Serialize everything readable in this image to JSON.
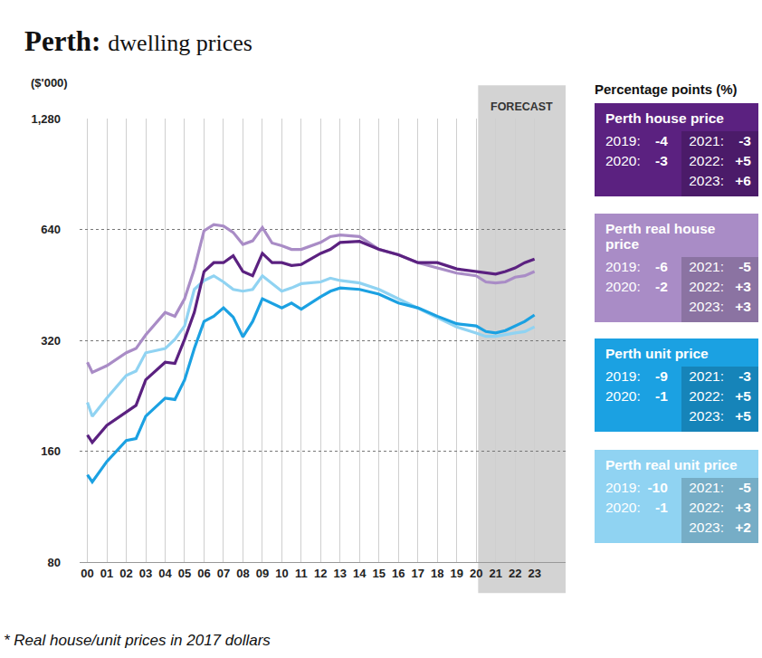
{
  "chart_data": {
    "type": "line",
    "title": "Perth:",
    "subtitle": "dwelling prices",
    "ylabel": "($'000)",
    "footnote": "* Real house/unit prices in 2017 dollars",
    "panel_heading": "Percentage points (%)",
    "log": "y",
    "grid": true,
    "xlim": [
      1999.6,
      2024.6
    ],
    "xticks": [
      {
        "value": 2000,
        "label": "00"
      },
      {
        "value": 2001,
        "label": "01"
      },
      {
        "value": 2002,
        "label": "02"
      },
      {
        "value": 2003,
        "label": "03"
      },
      {
        "value": 2004,
        "label": "04"
      },
      {
        "value": 2005,
        "label": "05"
      },
      {
        "value": 2006,
        "label": "06"
      },
      {
        "value": 2007,
        "label": "07"
      },
      {
        "value": 2008,
        "label": "08"
      },
      {
        "value": 2009,
        "label": "09"
      },
      {
        "value": 2010,
        "label": "10"
      },
      {
        "value": 2011,
        "label": "11"
      },
      {
        "value": 2012,
        "label": "12"
      },
      {
        "value": 2013,
        "label": "13"
      },
      {
        "value": 2014,
        "label": "14"
      },
      {
        "value": 2015,
        "label": "15"
      },
      {
        "value": 2016,
        "label": "16"
      },
      {
        "value": 2017,
        "label": "17"
      },
      {
        "value": 2018,
        "label": "18"
      },
      {
        "value": 2019,
        "label": "19"
      },
      {
        "value": 2020,
        "label": "20"
      },
      {
        "value": 2021,
        "label": "21"
      },
      {
        "value": 2022,
        "label": "22"
      },
      {
        "value": 2023,
        "label": "23"
      }
    ],
    "ylim": [
      80,
      1280
    ],
    "yticks": [
      80,
      160,
      320,
      640,
      {
        "value": 1280,
        "label": "1,280"
      }
    ],
    "annotations": [
      {
        "text": "FORECAST",
        "x_start": 2020.1,
        "x_end": 2024.6
      }
    ],
    "x": [
      2000,
      2000.25,
      2001,
      2002,
      2002.5,
      2003,
      2004,
      2004.5,
      2005,
      2005.5,
      2006,
      2006.5,
      2007,
      2007.5,
      2008,
      2008.5,
      2009,
      2009.5,
      2010,
      2010.5,
      2011,
      2012,
      2012.5,
      2013,
      2014,
      2015,
      2016,
      2017,
      2018,
      2019,
      2020,
      2020.5,
      2021,
      2021.5,
      2022,
      2022.5,
      2023
    ],
    "series": [
      {
        "name": "Perth real house price",
        "color": "#a98cc6",
        "values": [
          279,
          262,
          273,
          296,
          304,
          331,
          381,
          372,
          415,
          500,
          635,
          660,
          654,
          628,
          583,
          596,
          648,
          588,
          578,
          565,
          565,
          590,
          612,
          618,
          612,
          565,
          546,
          520,
          503,
          487,
          479,
          461,
          458,
          461,
          475,
          479,
          492
        ],
        "changes": [
          {
            "year": "2019:",
            "value": -6
          },
          {
            "year": "2020:",
            "value": -2
          },
          {
            "year": "2021:",
            "value": -5
          },
          {
            "year": "2022:",
            "value": 3,
            "label": "+3"
          },
          {
            "year": "2023:",
            "value": 3,
            "label": "+3"
          }
        ]
      },
      {
        "name": "Perth real unit price",
        "color": "#90d3f2",
        "values": [
          217,
          199,
          223,
          257,
          264,
          296,
          304,
          322,
          350,
          440,
          465,
          479,
          461,
          440,
          435,
          440,
          479,
          456,
          435,
          444,
          456,
          461,
          472,
          465,
          458,
          440,
          415,
          392,
          370,
          348,
          335,
          328,
          328,
          332,
          335,
          338,
          348
        ],
        "changes": [
          {
            "year": "2019:",
            "value": -10
          },
          {
            "year": "2020:",
            "value": -1
          },
          {
            "year": "2021:",
            "value": -5
          },
          {
            "year": "2022:",
            "value": 3,
            "label": "+3"
          },
          {
            "year": "2023:",
            "value": 2,
            "label": "+2"
          }
        ]
      },
      {
        "name": "Perth house price",
        "color": "#5b2180",
        "values": [
          177,
          169,
          188,
          205,
          213,
          250,
          279,
          277,
          322,
          381,
          492,
          520,
          520,
          543,
          492,
          479,
          551,
          520,
          520,
          511,
          514,
          551,
          565,
          590,
          594,
          565,
          546,
          520,
          520,
          500,
          492,
          487,
          484,
          492,
          503,
          520,
          532
        ],
        "changes": [
          {
            "year": "2019:",
            "value": -4
          },
          {
            "year": "2020:",
            "value": -3
          },
          {
            "year": "2021:",
            "value": -3
          },
          {
            "year": "2022:",
            "value": 5,
            "label": "+5"
          },
          {
            "year": "2023:",
            "value": 6,
            "label": "+6"
          }
        ]
      },
      {
        "name": "Perth unit price",
        "color": "#1ba1e2",
        "values": [
          138,
          132,
          150,
          171,
          173,
          199,
          223,
          221,
          250,
          304,
          360,
          372,
          392,
          370,
          327,
          360,
          415,
          404,
          392,
          404,
          389,
          420,
          435,
          444,
          440,
          427,
          404,
          392,
          372,
          355,
          350,
          338,
          335,
          340,
          350,
          360,
          375
        ],
        "changes": [
          {
            "year": "2019:",
            "value": -9
          },
          {
            "year": "2020:",
            "value": -1
          },
          {
            "year": "2021:",
            "value": -3
          },
          {
            "year": "2022:",
            "value": 5,
            "label": "+5"
          },
          {
            "year": "2023:",
            "value": 5,
            "label": "+5"
          }
        ]
      }
    ]
  }
}
